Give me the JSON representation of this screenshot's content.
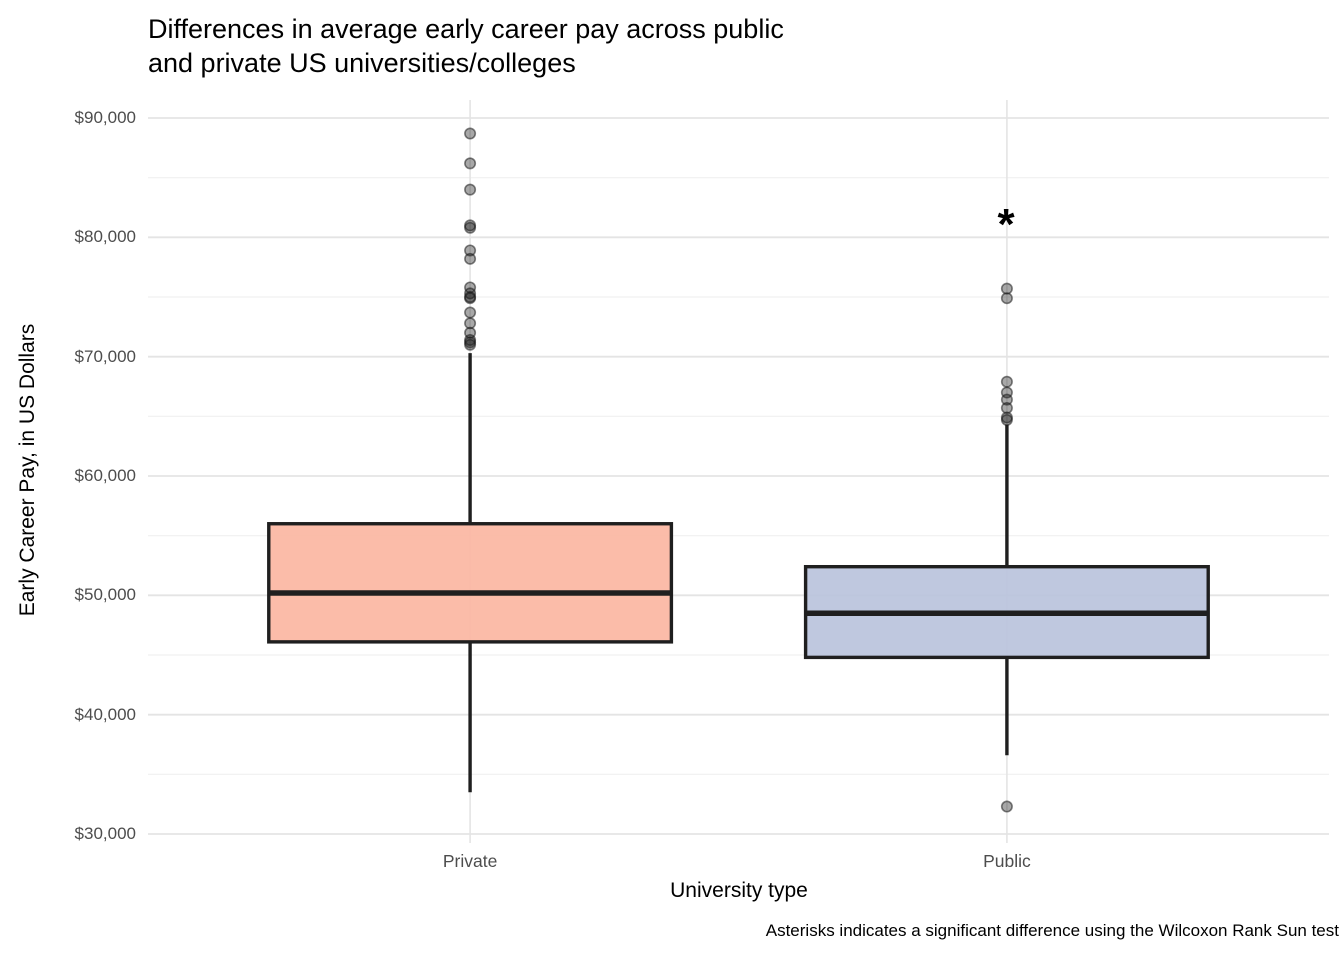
{
  "title": {
    "line1": "Differences in average early career pay across public",
    "line2": "and private US universities/colleges"
  },
  "axes": {
    "y_title": "Early Career Pay, in US Dollars",
    "x_title": "University type",
    "y_tick_labels": [
      "$30,000",
      "$40,000",
      "$50,000",
      "$60,000",
      "$70,000",
      "$80,000",
      "$90,000"
    ],
    "x_tick_labels": [
      "Private",
      "Public"
    ]
  },
  "caption": "Asterisks indicates a significant difference using the Wilcoxon Rank Sun test",
  "annotation": {
    "text": "*",
    "category": "Public",
    "value": 81000
  },
  "chart_data": {
    "type": "boxplot",
    "title": "Differences in average early career pay across public and private US universities/colleges",
    "xlabel": "University type",
    "ylabel": "Early Career Pay, in US Dollars",
    "categories": [
      "Private",
      "Public"
    ],
    "ylim": [
      30000,
      92000
    ],
    "y_major_ticks": [
      30000,
      40000,
      50000,
      60000,
      70000,
      80000,
      90000
    ],
    "y_minor_ticks": [
      35000,
      45000,
      55000,
      65000,
      75000,
      85000
    ],
    "grid": "horizontal major+minor gridlines, vertical major gridline at each category, no axis lines, no tick marks",
    "legend": "none",
    "series": [
      {
        "name": "Private",
        "fill": "#FBB7A3",
        "q1": 46100,
        "median": 50200,
        "q3": 56000,
        "whisker_low": 33500,
        "whisker_high": 70300,
        "outliers": [
          88700,
          86200,
          84000,
          81000,
          80800,
          78900,
          78200,
          75800,
          75300,
          75000,
          74900,
          73700,
          72800,
          72000,
          71400,
          71200,
          71000
        ]
      },
      {
        "name": "Public",
        "fill": "#BAC4DD",
        "q1": 44800,
        "median": 48500,
        "q3": 52400,
        "whisker_low": 36600,
        "whisker_high": 64300,
        "outliers": [
          75700,
          74900,
          67900,
          67000,
          66400,
          65700,
          64900,
          64700,
          32300
        ]
      }
    ],
    "annotations": [
      {
        "text": "*",
        "x": "Public",
        "y": 81000
      }
    ],
    "style": {
      "box_border": "#1f1f1f",
      "median_color": "#1f1f1f",
      "whisker_color": "#1f1f1f",
      "outlier_color": "#1a1a1a",
      "grid_major": "#e4e4e4",
      "grid_minor": "#f0f0f0",
      "tick_label_color": "#4d4d4d",
      "background": "#ffffff"
    }
  }
}
